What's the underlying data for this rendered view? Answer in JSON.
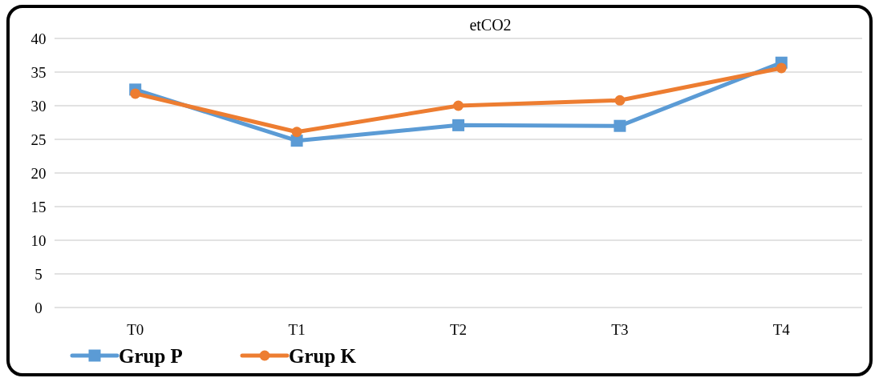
{
  "chart_data": {
    "type": "line",
    "title": "etCO2",
    "categories": [
      "T0",
      "T1",
      "T2",
      "T3",
      "T4"
    ],
    "series": [
      {
        "name": "Grup P",
        "color": "#5b9bd5",
        "marker": "square",
        "values": [
          32.4,
          24.8,
          27.1,
          27.0,
          36.4
        ]
      },
      {
        "name": "Grup K",
        "color": "#ed7d31",
        "marker": "circle",
        "values": [
          31.8,
          26.1,
          30.0,
          30.8,
          35.6
        ]
      }
    ],
    "ylim": [
      0,
      40
    ],
    "yticks": [
      0,
      5,
      10,
      15,
      20,
      25,
      30,
      35,
      40
    ],
    "grid": "y",
    "legend": "bottom left"
  }
}
